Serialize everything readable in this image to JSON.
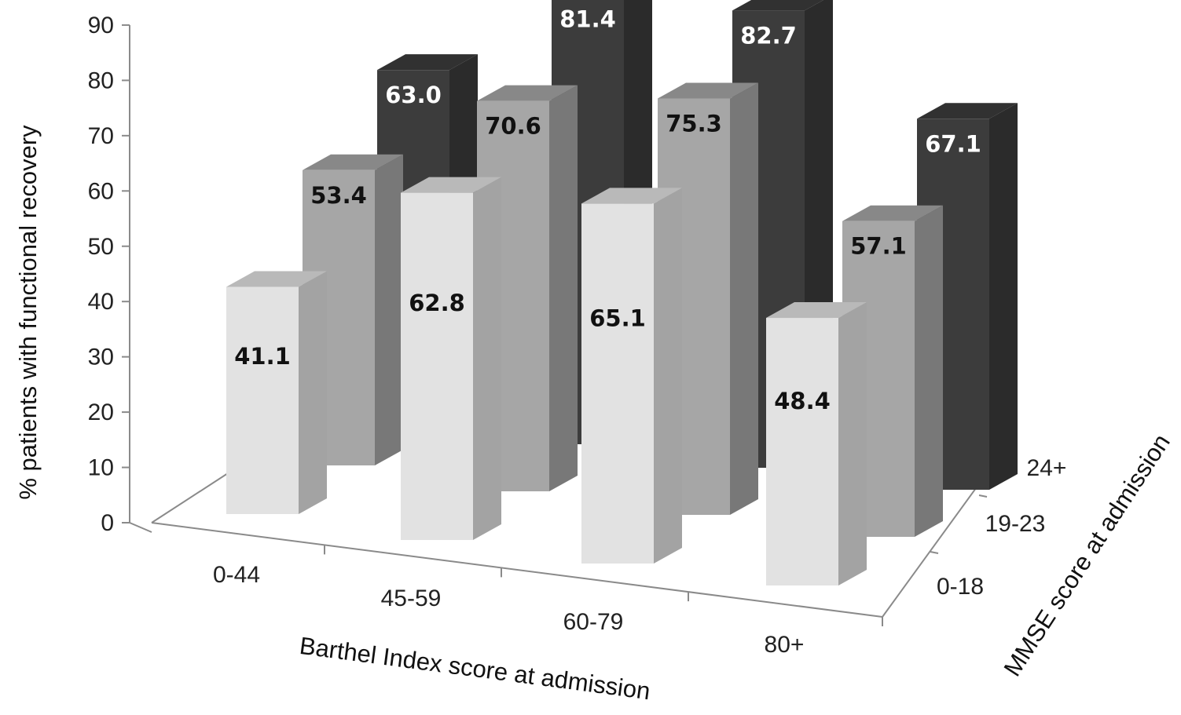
{
  "chart_data": {
    "type": "bar",
    "subtype": "3d-column",
    "ylabel": "% patients with functional recovery",
    "xlabel": "Barthel Index score at admission",
    "zlabel": "MMSE score at admission",
    "ylim": [
      0,
      90
    ],
    "yticks": [
      "0",
      "10",
      "20",
      "30",
      "40",
      "50",
      "60",
      "70",
      "80",
      "90"
    ],
    "categories": [
      "0-44",
      "45-59",
      "60-79",
      "80+"
    ],
    "series": [
      {
        "name": "0-18",
        "values": [
          41.1,
          62.8,
          65.1,
          48.4
        ],
        "labels": [
          "41.1",
          "62.8",
          "65.1",
          "48.4"
        ],
        "color": "#e2e2e2",
        "label_color": "#111111"
      },
      {
        "name": "19-23",
        "values": [
          53.4,
          70.6,
          75.3,
          57.1
        ],
        "labels": [
          "53.4",
          "70.6",
          "75.3",
          "57.1"
        ],
        "color": "#a6a6a6",
        "label_color": "#111111"
      },
      {
        "name": "24+",
        "values": [
          63.0,
          81.4,
          82.7,
          67.1
        ],
        "labels": [
          "63.0",
          "81.4",
          "82.7",
          "67.1"
        ],
        "color": "#3c3c3c",
        "label_color": "#ffffff"
      }
    ],
    "grid": false,
    "legend": "none"
  }
}
